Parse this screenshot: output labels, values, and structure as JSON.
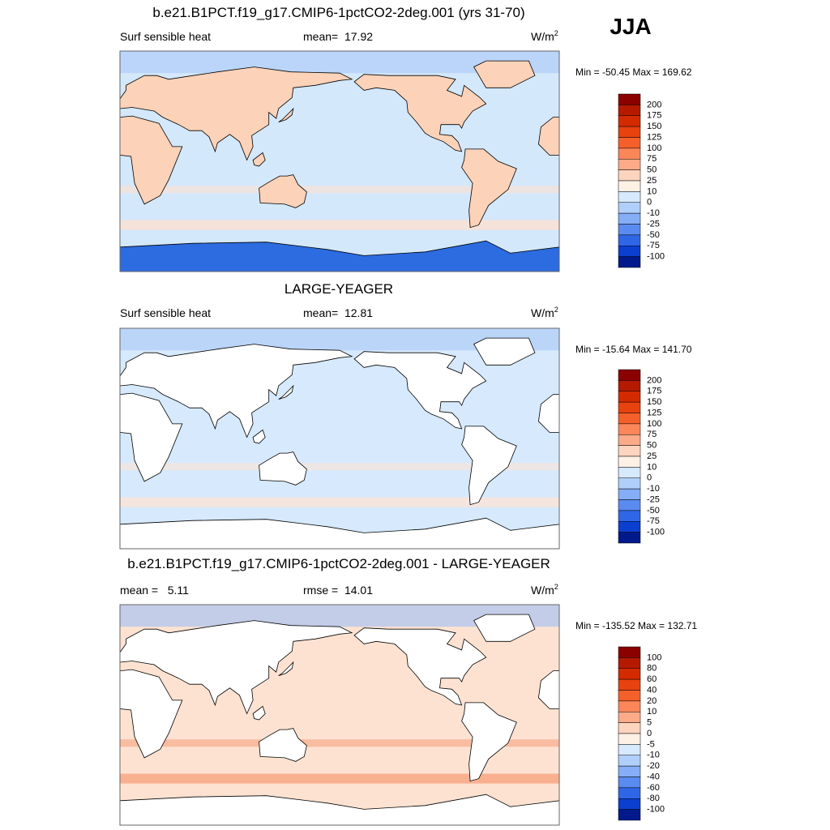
{
  "header": {
    "season": "JJA"
  },
  "panels": [
    {
      "title": "b.e21.B1PCT.f19_g17.CMIP6-1pctCO2-2deg.001 (yrs 31-70)",
      "left": "Surf sensible heat",
      "center": "mean=  17.92",
      "units": {
        "base": "W/m",
        "sup": "2"
      },
      "minmax": "Min = -50.45 Max = 169.62",
      "colorbar": {
        "labels": [
          200,
          175,
          150,
          125,
          100,
          75,
          50,
          25,
          10,
          0,
          -10,
          -25,
          -50,
          -75,
          -100
        ],
        "colors": [
          "#8b0000",
          "#b51a00",
          "#d42a00",
          "#e8420f",
          "#f5602a",
          "#fa8659",
          "#fcaa88",
          "#fdd4bd",
          "#fdf0e4",
          "#d7e9fd",
          "#b0cffb",
          "#85aef7",
          "#5a8bf0",
          "#2f66e6",
          "#0b3fd0",
          "#001a8c"
        ]
      }
    },
    {
      "title": "LARGE-YEAGER",
      "left": "Surf sensible heat",
      "center": "mean=  12.81",
      "units": {
        "base": "W/m",
        "sup": "2"
      },
      "minmax": "Min = -15.64 Max = 141.70",
      "colorbar": {
        "labels": [
          200,
          175,
          150,
          125,
          100,
          75,
          50,
          25,
          10,
          0,
          -10,
          -25,
          -50,
          -75,
          -100
        ],
        "colors": [
          "#8b0000",
          "#b51a00",
          "#d42a00",
          "#e8420f",
          "#f5602a",
          "#fa8659",
          "#fcaa88",
          "#fdd4bd",
          "#fdf0e4",
          "#d7e9fd",
          "#b0cffb",
          "#85aef7",
          "#5a8bf0",
          "#2f66e6",
          "#0b3fd0",
          "#001a8c"
        ]
      }
    },
    {
      "title": "b.e21.B1PCT.f19_g17.CMIP6-1pctCO2-2deg.001 - LARGE-YEAGER",
      "left": "mean =   5.11",
      "center": "rmse =  14.01",
      "units": {
        "base": "W/m",
        "sup": "2"
      },
      "minmax": "Min = -135.52 Max = 132.71",
      "colorbar": {
        "labels": [
          100,
          80,
          60,
          40,
          20,
          10,
          5,
          0,
          -5,
          -10,
          -20,
          -40,
          -60,
          -80,
          -100
        ],
        "colors": [
          "#8b0000",
          "#b51a00",
          "#d42a00",
          "#e8420f",
          "#f5602a",
          "#fa8659",
          "#fcaa88",
          "#fdd4bd",
          "#fdf0e4",
          "#d7e9fd",
          "#b0cffb",
          "#85aef7",
          "#5a8bf0",
          "#2f66e6",
          "#0b3fd0",
          "#001a8c"
        ]
      }
    }
  ]
}
